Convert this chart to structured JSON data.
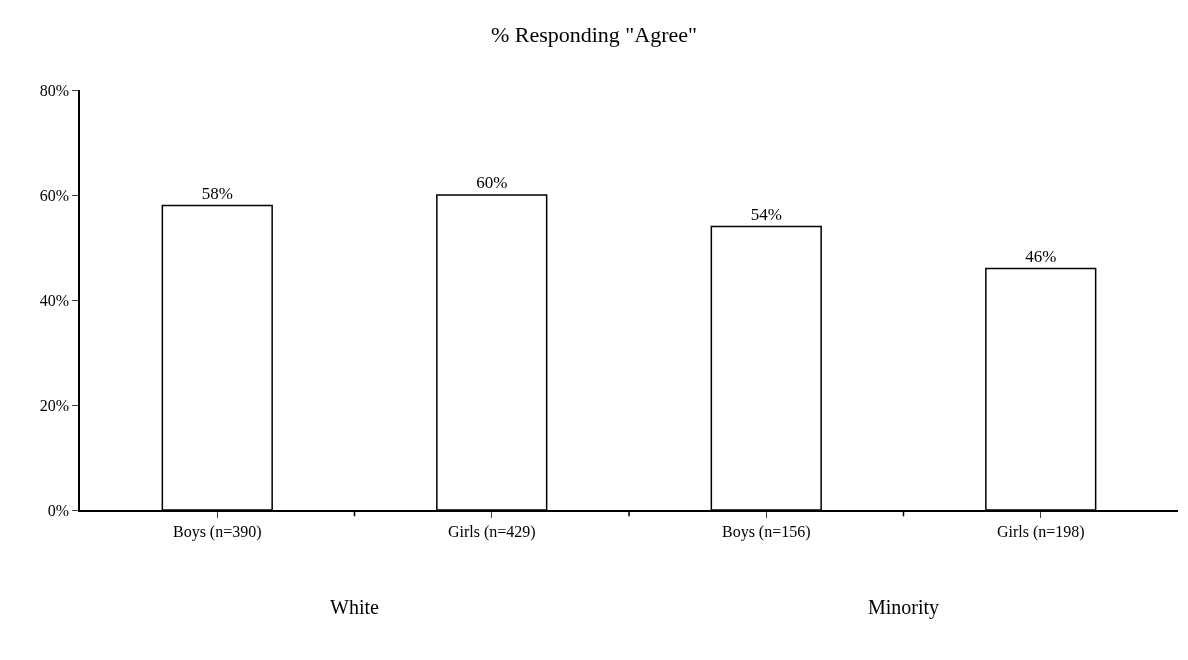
{
  "chart_data": {
    "type": "bar",
    "title": "% Responding \"Agree\"",
    "categories": [
      "Boys (n=390)",
      "Girls (n=429)",
      "Boys (n=156)",
      "Girls (n=198)"
    ],
    "values": [
      58,
      60,
      54,
      46
    ],
    "value_labels": [
      "58%",
      "60%",
      "54%",
      "46%"
    ],
    "color": "#ffffff",
    "ylim": [
      0,
      80
    ],
    "yticks": [
      {
        "value": 0,
        "label": "0%"
      },
      {
        "value": 20,
        "label": "20%"
      },
      {
        "value": 40,
        "label": "40%"
      },
      {
        "value": 60,
        "label": "60%"
      },
      {
        "value": 80,
        "label": "80%"
      }
    ],
    "legend": false,
    "annotations": [
      "White",
      "Minority"
    ]
  }
}
